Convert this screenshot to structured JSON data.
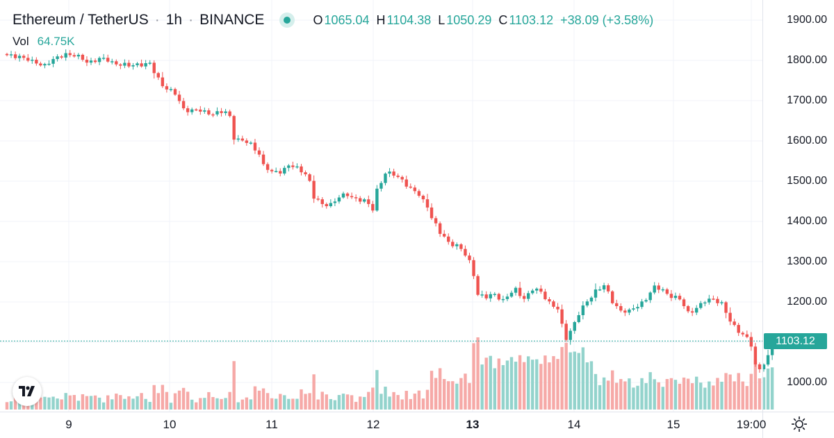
{
  "header": {
    "symbol": "Ethereum / TetherUS",
    "interval": "1h",
    "exchange": "BINANCE",
    "ohlc": {
      "o_label": "O",
      "o": "1065.04",
      "h_label": "H",
      "h": "1104.38",
      "l_label": "L",
      "l": "1050.29",
      "c_label": "C",
      "c": "1103.12",
      "change": "+38.09 (+3.58%)"
    }
  },
  "volume": {
    "label": "Vol",
    "value": "64.75K"
  },
  "last_price_tag": "1103.12",
  "price_axis": [
    "1900.00",
    "1800.00",
    "1700.00",
    "1600.00",
    "1500.00",
    "1400.00",
    "1300.00",
    "1200.00",
    "1000.00"
  ],
  "time_axis": [
    "9",
    "10",
    "11",
    "12",
    "13",
    "14",
    "15",
    "19:00"
  ],
  "icons": {
    "logo": "tradingview-logo-icon",
    "settings": "settings-gear-icon",
    "status": "market-status-dot-icon"
  },
  "colors": {
    "up": "#26a69a",
    "down": "#ef5350",
    "up_vol": "#93d3cc",
    "down_vol": "#f6a9a7",
    "grid": "#f0f3fa"
  },
  "chart_data": {
    "type": "candlestick",
    "title": "Ethereum / TetherUS · 1h · BINANCE",
    "y_axis_ticks": [
      1000,
      1200,
      1300,
      1400,
      1500,
      1600,
      1700,
      1800,
      1900
    ],
    "ylim": [
      930,
      1930
    ],
    "x_tick_labels": [
      "9",
      "10",
      "11",
      "12",
      "13",
      "14",
      "15",
      "19:00"
    ],
    "last_price": 1103.12,
    "close_path_approx": [
      [
        0,
        1810
      ],
      [
        3,
        1812
      ],
      [
        6,
        1795
      ],
      [
        9,
        1790
      ],
      [
        12,
        1805
      ],
      [
        14,
        1818
      ],
      [
        16,
        1812
      ],
      [
        19,
        1797
      ],
      [
        22,
        1803
      ],
      [
        24,
        1800
      ],
      [
        27,
        1790
      ],
      [
        29,
        1785
      ],
      [
        31,
        1792
      ],
      [
        34,
        1790
      ],
      [
        35,
        1770
      ],
      [
        37,
        1740
      ],
      [
        40,
        1715
      ],
      [
        42,
        1680
      ],
      [
        45,
        1675
      ],
      [
        48,
        1670
      ],
      [
        52,
        1670
      ],
      [
        53,
        1660
      ],
      [
        54,
        1610
      ],
      [
        56,
        1600
      ],
      [
        58,
        1590
      ],
      [
        60,
        1570
      ],
      [
        61,
        1540
      ],
      [
        63,
        1520
      ],
      [
        65,
        1525
      ],
      [
        67,
        1540
      ],
      [
        69,
        1530
      ],
      [
        71,
        1520
      ],
      [
        72,
        1500
      ],
      [
        73,
        1460
      ],
      [
        75,
        1440
      ],
      [
        77,
        1445
      ],
      [
        79,
        1460
      ],
      [
        81,
        1465
      ],
      [
        83,
        1458
      ],
      [
        85,
        1450
      ],
      [
        87,
        1430
      ],
      [
        88,
        1480
      ],
      [
        90,
        1520
      ],
      [
        92,
        1515
      ],
      [
        94,
        1505
      ],
      [
        96,
        1480
      ],
      [
        98,
        1465
      ],
      [
        100,
        1440
      ],
      [
        101,
        1410
      ],
      [
        103,
        1370
      ],
      [
        105,
        1350
      ],
      [
        107,
        1340
      ],
      [
        108,
        1330
      ],
      [
        110,
        1300
      ],
      [
        111,
        1270
      ],
      [
        112,
        1220
      ],
      [
        114,
        1210
      ],
      [
        116,
        1220
      ],
      [
        118,
        1205
      ],
      [
        121,
        1230
      ],
      [
        123,
        1210
      ],
      [
        125,
        1230
      ],
      [
        127,
        1225
      ],
      [
        129,
        1200
      ],
      [
        131,
        1180
      ],
      [
        132,
        1140
      ],
      [
        133,
        1110
      ],
      [
        134,
        1130
      ],
      [
        136,
        1170
      ],
      [
        138,
        1200
      ],
      [
        140,
        1230
      ],
      [
        142,
        1240
      ],
      [
        144,
        1200
      ],
      [
        146,
        1180
      ],
      [
        148,
        1175
      ],
      [
        150,
        1190
      ],
      [
        152,
        1210
      ],
      [
        154,
        1235
      ],
      [
        156,
        1230
      ],
      [
        158,
        1215
      ],
      [
        160,
        1205
      ],
      [
        162,
        1175
      ],
      [
        164,
        1185
      ],
      [
        166,
        1200
      ],
      [
        168,
        1210
      ],
      [
        170,
        1195
      ],
      [
        172,
        1150
      ],
      [
        174,
        1130
      ],
      [
        176,
        1110
      ],
      [
        177,
        1090
      ],
      [
        178,
        1040
      ],
      [
        179,
        1035
      ],
      [
        180,
        1050
      ],
      [
        181,
        1065
      ],
      [
        182,
        1103.12
      ]
    ]
  }
}
